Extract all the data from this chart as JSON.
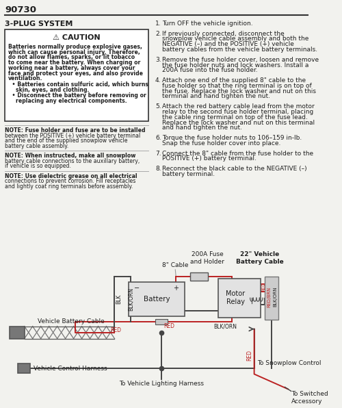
{
  "title": "90730",
  "section_title": "3-PLUG SYSTEM",
  "caution_title": "⚠ CAUTION",
  "caution_bold_lines": [
    "Batteries normally produce explosive gases,",
    "which can cause personal injury. Therefore,",
    "do not allow flames, sparks, or lit tobacco",
    "to come near the battery. When charging or",
    "working near a battery, always cover your",
    "face and protect your eyes, and also provide",
    "ventilation."
  ],
  "caution_bullets": [
    [
      "  • Batteries contain sulfuric acid, which burns",
      "    skin, eyes, and clothing."
    ],
    [
      "  • Disconnect the battery before removing or",
      "    replacing any electrical components."
    ]
  ],
  "notes": [
    [
      "NOTE: Fuse holder and fuse are to be installed",
      "between the POSITIVE (+) vehicle battery terminal",
      "and the end of the supplied snowplow vehicle",
      "battery cable assembly."
    ],
    [
      "NOTE: When instructed, make all snowplow",
      "battery cable connections to the auxillary battery,",
      "if vehicle is so equipped."
    ],
    [
      "NOTE: Use dielectric grease on all electrical",
      "connections to prevent corrosion. Fill receptacles",
      "and lightly coat ring terminals before assembly."
    ]
  ],
  "steps": [
    [
      "Turn OFF the vehicle ignition."
    ],
    [
      "If previously connected, disconnect the",
      "snowplow vehicle cable assembly and both the",
      "NEGATIVE (–) and the POSITIVE (+) vehicle",
      "battery cables from the vehicle battery terminals."
    ],
    [
      "Remove the fuse holder cover, loosen and remove",
      "the fuse holder nuts and lock washers. Install a",
      "200A fuse into the fuse holder."
    ],
    [
      "Attach one end of the supplied 8\" cable to the",
      "fuse holder so that the ring terminal is on top of",
      "the fuse. Replace the lock washer and nut on this",
      "terminal and hand tighten the nut."
    ],
    [
      "Attach the red battery cable lead from the motor",
      "relay to the second fuse holder terminal, placing",
      "the cable ring terminal on top of the fuse lead.",
      "Replace the lock washer and nut on this terminal",
      "and hand tighten the nut."
    ],
    [
      "Torque the fuse holder nuts to 106–159 in-lb.",
      "Snap the fuse holder cover into place."
    ],
    [
      "Connect the 8\" cable from the fuse holder to the",
      "POSITIVE (+) battery terminal."
    ],
    [
      "Reconnect the black cable to the NEGATIVE (–)",
      "battery terminal."
    ]
  ],
  "bg_color": "#f2f2ee",
  "text_color": "#1e1e1e",
  "caution_bg": "#ffffff",
  "caution_border": "#333333",
  "wire_dark": "#444444",
  "wire_red": "#bb2222",
  "box_fill": "#d5d5d5",
  "box_edge": "#555555",
  "note_line_color": "#aaaaaa"
}
